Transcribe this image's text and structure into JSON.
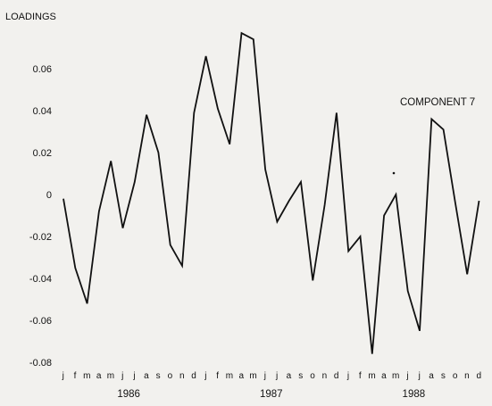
{
  "chart_data": {
    "type": "line",
    "title": "",
    "ylabel": "LOADINGS",
    "xlabel": "",
    "annotation": "COMPONENT 7",
    "ylim": [
      -0.08,
      0.08
    ],
    "yticks": [
      0.06,
      0.04,
      0.02,
      0,
      -0.02,
      -0.04,
      -0.06,
      -0.08
    ],
    "ytick_labels": [
      "0.06",
      "0.04",
      "0.02",
      "0",
      "-0.02",
      "-0.04",
      "-0.06",
      "-0.08"
    ],
    "month_labels": [
      "j",
      "f",
      "m",
      "a",
      "m",
      "j",
      "j",
      "a",
      "s",
      "o",
      "n",
      "d",
      "j",
      "f",
      "m",
      "a",
      "m",
      "j",
      "j",
      "a",
      "s",
      "o",
      "n",
      "d",
      "j",
      "f",
      "m",
      "a",
      "m",
      "j",
      "j",
      "a",
      "s",
      "o",
      "n",
      "d"
    ],
    "years": [
      "1986",
      "1987",
      "1988"
    ],
    "grid": false,
    "line_color": "#111111",
    "series": [
      {
        "values": [
          -0.002,
          -0.035,
          -0.052,
          -0.008,
          0.016,
          -0.016,
          0.006,
          0.038,
          0.02,
          -0.024,
          -0.034,
          0.039,
          0.066,
          0.041,
          0.024,
          0.077,
          0.074,
          0.012,
          -0.013,
          -0.003,
          0.006,
          -0.041,
          -0.005,
          0.039,
          -0.027,
          -0.02,
          -0.076,
          -0.01,
          0.0,
          -0.046,
          -0.065,
          0.036,
          0.031,
          -0.004,
          -0.038,
          -0.003
        ]
      }
    ]
  }
}
